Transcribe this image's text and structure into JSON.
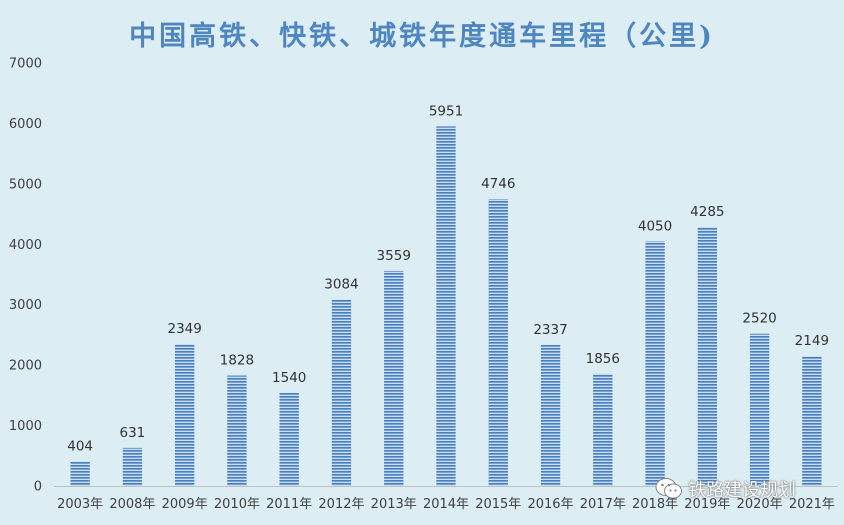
{
  "chart_data": {
    "type": "bar",
    "title": "中国高铁、快铁、城铁年度通车里程（公里)",
    "categories": [
      "2003年",
      "2008年",
      "2009年",
      "2010年",
      "2011年",
      "2012年",
      "2013年",
      "2014年",
      "2015年",
      "2016年",
      "2017年",
      "2018年",
      "2019年",
      "2020年",
      "2021年"
    ],
    "values": [
      404,
      631,
      2349,
      1828,
      1540,
      3084,
      3559,
      5951,
      4746,
      2337,
      1856,
      4050,
      4285,
      2520,
      2149
    ],
    "data_labels": [
      "404",
      "631",
      "2349",
      "1828",
      "1540",
      "3084",
      "3559",
      "5951",
      "4746",
      "2337",
      "1856",
      "4050",
      "4285",
      "2520",
      "2149"
    ],
    "yticks": [
      "0",
      "1000",
      "2000",
      "3000",
      "4000",
      "5000",
      "6000",
      "7000"
    ],
    "ylim": [
      0,
      7000
    ],
    "grid": false,
    "bar_style": "horizontal-striped",
    "colors": {
      "bar": "#4a7fc1",
      "bar_stripe": "#dcedf4",
      "background": "#dcedf4",
      "title": "#4f86c0"
    }
  },
  "watermark": {
    "text": "铁路建设规划",
    "icon": "wechat-icon"
  }
}
